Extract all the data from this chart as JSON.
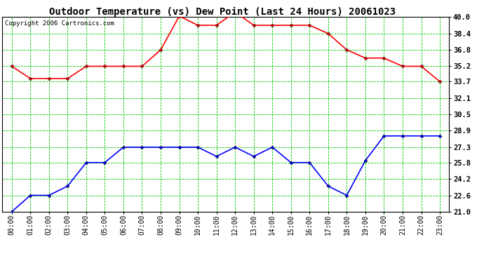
{
  "title": "Outdoor Temperature (vs) Dew Point (Last 24 Hours) 20061023",
  "copyright": "Copyright 2006 Cartronics.com",
  "hours": [
    "00:00",
    "01:00",
    "02:00",
    "03:00",
    "04:00",
    "05:00",
    "06:00",
    "07:00",
    "08:00",
    "09:00",
    "10:00",
    "11:00",
    "12:00",
    "13:00",
    "14:00",
    "15:00",
    "16:00",
    "17:00",
    "18:00",
    "19:00",
    "20:00",
    "21:00",
    "22:00",
    "23:00"
  ],
  "temp": [
    35.2,
    34.0,
    34.0,
    34.0,
    35.2,
    35.2,
    35.2,
    35.2,
    36.8,
    40.1,
    39.2,
    39.2,
    40.5,
    39.2,
    39.2,
    39.2,
    39.2,
    38.4,
    36.8,
    36.0,
    36.0,
    35.2,
    35.2,
    33.7
  ],
  "dew": [
    21.0,
    22.6,
    22.6,
    23.5,
    25.8,
    25.8,
    27.3,
    27.3,
    27.3,
    27.3,
    27.3,
    26.4,
    27.3,
    26.4,
    27.3,
    25.8,
    25.8,
    23.5,
    22.6,
    26.0,
    28.4,
    28.4,
    28.4,
    28.4
  ],
  "ylim": [
    21.0,
    40.0
  ],
  "yticks": [
    21.0,
    22.6,
    24.2,
    25.8,
    27.3,
    28.9,
    30.5,
    32.1,
    33.7,
    35.2,
    36.8,
    38.4,
    40.0
  ],
  "bg_color": "#ffffff",
  "plot_bg": "#ffffff",
  "grid_color": "#00cc00",
  "temp_color": "#ff0000",
  "dew_color": "#0000ff",
  "marker": "D",
  "marker_size": 2.5,
  "line_width": 1.2,
  "title_fontsize": 10,
  "tick_fontsize": 7,
  "ytick_fontsize": 7.5,
  "copyright_fontsize": 6.5
}
